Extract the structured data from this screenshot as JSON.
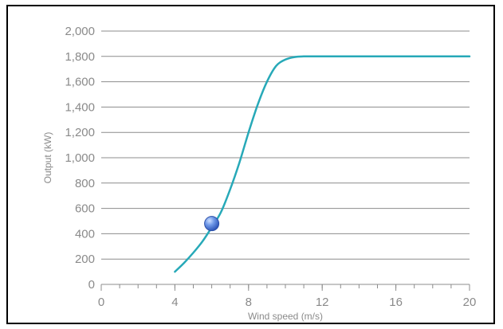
{
  "chart_data": {
    "type": "line",
    "title": "",
    "xlabel": "Wind speed (m/s)",
    "ylabel": "Output (kW)",
    "xlim": [
      0,
      20
    ],
    "ylim": [
      0,
      2000
    ],
    "x_ticks": [
      0,
      4,
      8,
      12,
      16,
      20
    ],
    "x_tick_labels": [
      "0",
      "4",
      "8",
      "12",
      "16",
      "20"
    ],
    "x_minor_step": 1,
    "y_ticks": [
      0,
      200,
      400,
      600,
      800,
      1000,
      1200,
      1400,
      1600,
      1800,
      2000
    ],
    "y_tick_labels": [
      "0",
      "200",
      "400",
      "600",
      "800",
      "1,000",
      "1,200",
      "1,400",
      "1,600",
      "1,800",
      "2,000"
    ],
    "grid": "horizontal",
    "series": [
      {
        "color": "#27a9b8",
        "x": [
          4,
          4.5,
          5,
          5.5,
          6,
          6.5,
          7,
          7.5,
          8,
          8.5,
          9,
          9.5,
          10,
          10.5,
          11,
          11.5,
          12,
          16,
          20
        ],
        "y": [
          100,
          170,
          250,
          340,
          450,
          570,
          750,
          960,
          1200,
          1420,
          1600,
          1725,
          1775,
          1795,
          1800,
          1800,
          1800,
          1800,
          1800
        ]
      }
    ],
    "marker": {
      "x": 6,
      "y": 480,
      "color": "#4a78d4"
    },
    "colors": {
      "grid": "#8c8c8c",
      "axis": "#8c8c8c",
      "text": "#8a8a8a"
    }
  }
}
